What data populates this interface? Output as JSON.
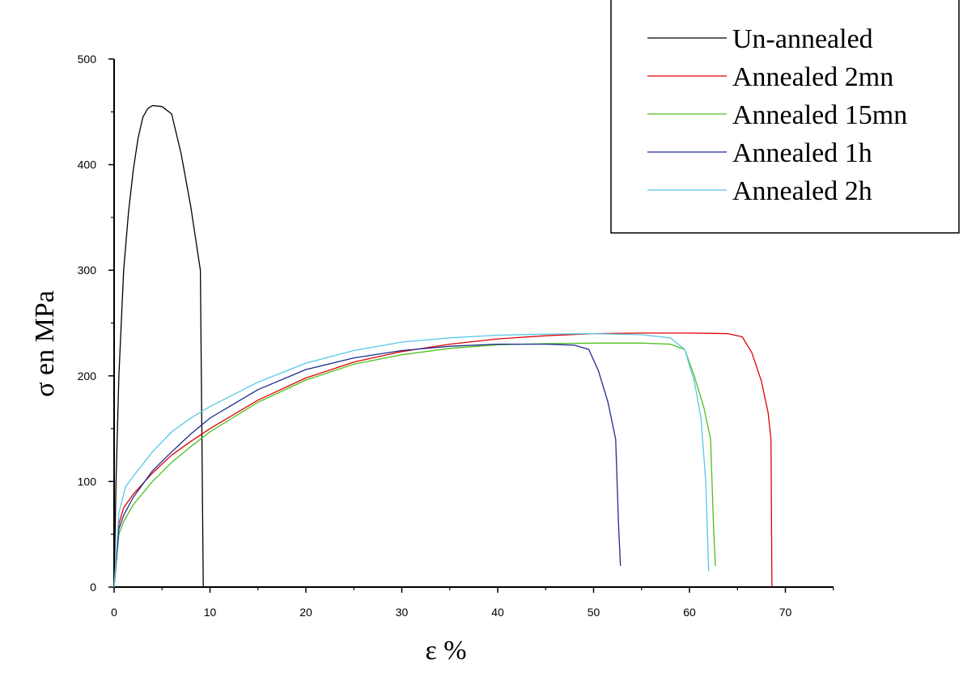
{
  "chart_data": {
    "type": "line",
    "xlabel": "ε %",
    "ylabel": "σ  en MPa",
    "xlim": [
      0,
      75
    ],
    "ylim": [
      0,
      500
    ],
    "xticks": [
      0,
      10,
      20,
      30,
      40,
      50,
      60,
      70
    ],
    "yticks": [
      0,
      100,
      200,
      300,
      400,
      500
    ],
    "grid": false,
    "legend_position": "top-right",
    "series": [
      {
        "name": "Un-annealed",
        "color": "#000000",
        "x": [
          0,
          0.2,
          0.5,
          1.0,
          1.5,
          2.0,
          2.5,
          3.0,
          3.5,
          4.0,
          5.0,
          6.0,
          7.0,
          8.0,
          9.0,
          9.2,
          9.3
        ],
        "y": [
          0,
          100,
          200,
          300,
          355,
          395,
          425,
          445,
          453,
          456,
          455,
          448,
          410,
          360,
          300,
          100,
          0
        ]
      },
      {
        "name": "Annealed 2mn",
        "color": "#e00000",
        "x": [
          0,
          0.5,
          1,
          2,
          4,
          6,
          8,
          10,
          15,
          20,
          25,
          30,
          35,
          40,
          45,
          50,
          55,
          60,
          64,
          65.5,
          66.5,
          67.5,
          68.2,
          68.5,
          68.6
        ],
        "y": [
          0,
          60,
          75,
          88,
          108,
          125,
          138,
          150,
          177,
          198,
          213,
          223,
          230,
          235,
          238,
          240,
          240.5,
          240.5,
          240,
          237,
          222,
          195,
          165,
          140,
          0
        ]
      },
      {
        "name": "Annealed 15mn",
        "color": "#4fbf1f",
        "x": [
          0,
          0.5,
          1,
          2,
          4,
          6,
          8,
          10,
          15,
          20,
          25,
          30,
          35,
          40,
          45,
          50,
          55,
          58,
          59.5,
          60.5,
          61.5,
          62.2,
          62.5,
          62.7
        ],
        "y": [
          0,
          50,
          62,
          78,
          100,
          118,
          133,
          147,
          175,
          196,
          211,
          220,
          226,
          229.5,
          230.5,
          231,
          231,
          230,
          225,
          200,
          170,
          140,
          60,
          20
        ]
      },
      {
        "name": "Annealed 1h",
        "color": "#1f2a8f",
        "x": [
          0,
          0.5,
          1,
          2,
          4,
          6,
          8,
          10,
          15,
          20,
          25,
          30,
          35,
          40,
          45,
          48,
          49.5,
          50.5,
          51.5,
          52.3,
          52.6,
          52.8
        ],
        "y": [
          0,
          55,
          68,
          85,
          110,
          128,
          145,
          160,
          187,
          206,
          217,
          224,
          228,
          230,
          230,
          229,
          225,
          205,
          175,
          140,
          60,
          20
        ]
      },
      {
        "name": "Annealed 2h",
        "color": "#57c8e8",
        "x": [
          0,
          0.5,
          1.2,
          2,
          4,
          6,
          8,
          10,
          15,
          20,
          25,
          30,
          35,
          40,
          45,
          50,
          55,
          58,
          59.5,
          60.5,
          61.2,
          61.7,
          62.0
        ],
        "y": [
          0,
          70,
          95,
          105,
          128,
          147,
          160,
          171,
          194,
          212,
          224,
          232,
          236,
          238.5,
          239.5,
          240,
          239,
          236,
          225,
          195,
          160,
          100,
          15
        ]
      }
    ]
  }
}
